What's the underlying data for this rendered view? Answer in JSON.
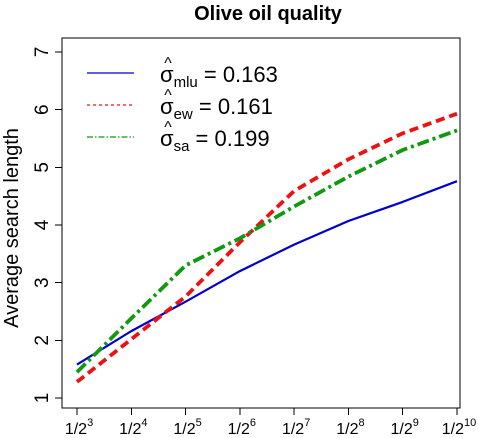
{
  "chart_data": {
    "type": "line",
    "title": "Olive oil quality",
    "xlabel": "",
    "ylabel": "Average search length",
    "ylim": [
      0.9,
      7.2
    ],
    "yticks": [
      "1",
      "2",
      "3",
      "4",
      "5",
      "6",
      "7"
    ],
    "x": [
      3,
      4,
      5,
      6,
      7,
      8,
      9,
      10
    ],
    "xtick_base": "1/2",
    "xtick_exponents": [
      "3",
      "4",
      "5",
      "6",
      "7",
      "8",
      "9",
      "10"
    ],
    "grid": false,
    "legend_position": "top-left",
    "series": [
      {
        "name": "σ̂mlu = 0.163",
        "legend_symbol": "σ",
        "legend_subscript": "mlu",
        "legend_value": " = 0.163",
        "color": "#0000cc",
        "dash": "solid",
        "values": [
          1.58,
          2.16,
          2.67,
          3.2,
          3.66,
          4.07,
          4.4,
          4.76
        ]
      },
      {
        "name": "σ̂ew = 0.161",
        "legend_symbol": "σ",
        "legend_subscript": "ew",
        "legend_value": " = 0.161",
        "color": "#ee1111",
        "dash": "dashed",
        "values": [
          1.28,
          2.02,
          2.76,
          3.7,
          4.59,
          5.14,
          5.59,
          5.93
        ]
      },
      {
        "name": "σ̂sa = 0.199",
        "legend_symbol": "σ",
        "legend_subscript": "sa",
        "legend_value": " = 0.199",
        "color": "#119911",
        "dash": "dotdash",
        "values": [
          1.45,
          2.38,
          3.3,
          3.77,
          4.32,
          4.84,
          5.3,
          5.64
        ]
      }
    ]
  }
}
